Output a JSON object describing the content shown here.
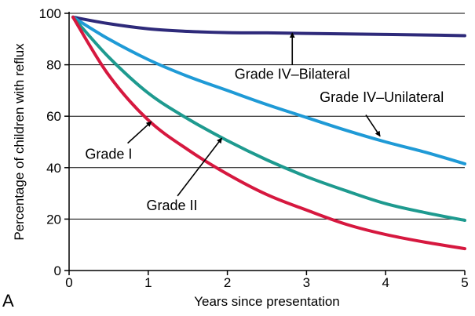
{
  "chart_data": {
    "type": "line",
    "panel_label": "A",
    "xlabel": "Years since presentation",
    "ylabel": "Percentage of children with reflux",
    "xlim": [
      0,
      5
    ],
    "ylim": [
      0,
      100
    ],
    "x_ticks": [
      0,
      1,
      2,
      3,
      4,
      5
    ],
    "y_ticks": [
      0,
      20,
      40,
      60,
      80,
      100
    ],
    "grid": "horizontal",
    "series": [
      {
        "key": "grade-iv-bilateral",
        "color": "#2e2a7a",
        "x": [
          0.05,
          0.5,
          1,
          1.5,
          2,
          2.5,
          3,
          3.5,
          4,
          4.5,
          5
        ],
        "values": [
          98.5,
          96,
          94,
          93,
          92.5,
          92.4,
          92.2,
          92,
          91.8,
          91.6,
          91.3
        ]
      },
      {
        "key": "grade-iv-unilateral",
        "color": "#1f9ad6",
        "x": [
          0.05,
          0.5,
          1,
          1.5,
          2,
          2.5,
          3,
          3.5,
          4,
          4.5,
          5
        ],
        "values": [
          98.5,
          90,
          82,
          75.5,
          70,
          64.5,
          59.5,
          54.5,
          50,
          46,
          41.5
        ]
      },
      {
        "key": "grade-ii",
        "color": "#1e9a8f",
        "x": [
          0.05,
          0.5,
          1,
          1.5,
          2,
          2.5,
          3,
          3.5,
          4,
          4.5,
          5
        ],
        "values": [
          98.5,
          83,
          69,
          59,
          50.5,
          43,
          36.5,
          31,
          26,
          22.5,
          19.5
        ]
      },
      {
        "key": "grade-i",
        "color": "#d6183f",
        "x": [
          0.05,
          0.5,
          1,
          1.5,
          2,
          2.5,
          3,
          3.5,
          4,
          4.5,
          5
        ],
        "values": [
          98.5,
          76,
          58.5,
          47,
          37.5,
          29.5,
          23.5,
          18,
          14,
          11,
          8.5
        ]
      }
    ],
    "annotations": [
      {
        "text": "Grade IV–Bilateral",
        "text_at": [
          2.82,
          74.5
        ],
        "anchor": "middle",
        "arrow_from": [
          2.82,
          80
        ],
        "arrow_to": [
          2.82,
          92.4
        ]
      },
      {
        "text": "Grade IV–Unilateral",
        "text_at": [
          3.95,
          65.5
        ],
        "anchor": "middle",
        "arrow_from": [
          3.75,
          60.5
        ],
        "arrow_to": [
          3.93,
          52.2
        ]
      },
      {
        "text": "Grade I",
        "text_at": [
          0.5,
          43.5
        ],
        "anchor": "middle",
        "arrow_from": [
          0.74,
          49.5
        ],
        "arrow_to": [
          1.04,
          57.9
        ]
      },
      {
        "text": "Grade II",
        "text_at": [
          1.3,
          23.5
        ],
        "anchor": "middle",
        "arrow_from": [
          1.37,
          29
        ],
        "arrow_to": [
          1.93,
          51.5
        ]
      }
    ]
  }
}
